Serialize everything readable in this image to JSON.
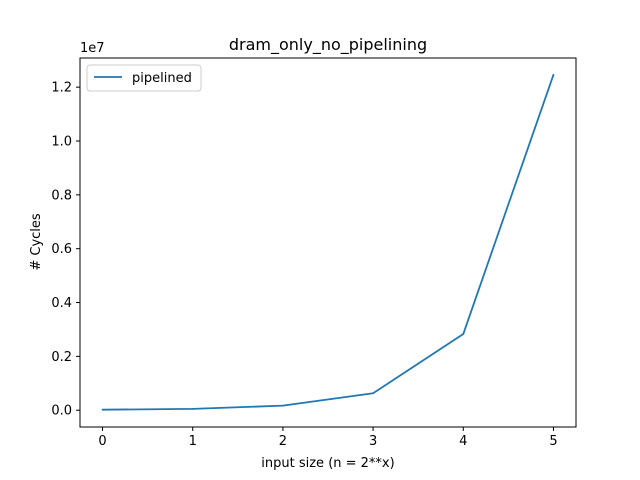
{
  "chart_data": {
    "type": "line",
    "title": "dram_only_no_pipelining",
    "xlabel": "input size (n = 2**x)",
    "ylabel": "# Cycles",
    "offset_text": "1e7",
    "x": [
      0,
      1,
      2,
      3,
      4,
      5
    ],
    "series": [
      {
        "name": "pipelined",
        "color": "#1f77b4",
        "values": [
          20000,
          50000,
          170000,
          630000,
          2830000,
          12460000
        ]
      }
    ],
    "xlim": [
      -0.25,
      5.25
    ],
    "ylim": [
      -623000,
      13083000
    ],
    "xticks": [
      0,
      1,
      2,
      3,
      4,
      5
    ],
    "xtick_labels": [
      "0",
      "1",
      "2",
      "3",
      "4",
      "5"
    ],
    "yticks": [
      0,
      2000000,
      4000000,
      6000000,
      8000000,
      10000000,
      12000000
    ],
    "ytick_labels": [
      "0.0",
      "0.2",
      "0.4",
      "0.6",
      "0.8",
      "1.0",
      "1.2"
    ],
    "grid": false,
    "legend_position": "upper-left"
  }
}
